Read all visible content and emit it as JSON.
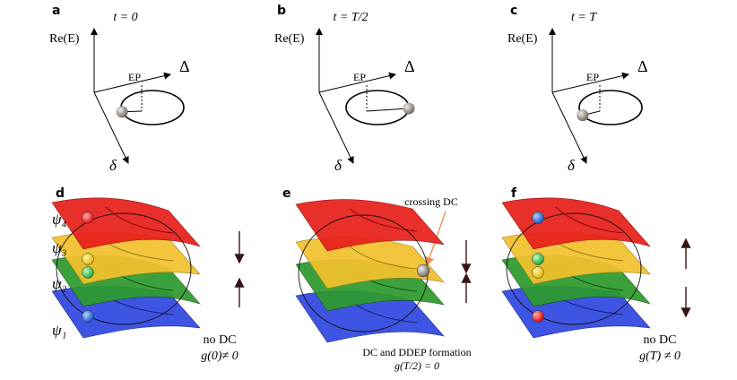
{
  "panels": [
    {
      "label": "a",
      "time": "t = 0",
      "y_axis": "Re(E)",
      "ep": "EP",
      "x_axis": "Δ",
      "z_axis": "δ"
    },
    {
      "label": "b",
      "time": "t = T/2",
      "y_axis": "Re(E)",
      "ep": "EP",
      "x_axis": "Δ",
      "z_axis": "δ"
    },
    {
      "label": "c",
      "time": "t = T",
      "y_axis": "Re(E)",
      "ep": "EP",
      "x_axis": "Δ",
      "z_axis": "δ"
    }
  ],
  "bottom": [
    {
      "label": "d",
      "states": [
        "ψ₄",
        "ψ₃",
        "ψ₂",
        "ψ₁"
      ],
      "note": "no DC",
      "condition": "g(0)≠ 0"
    },
    {
      "label": "e",
      "callout": "crossing DC",
      "note": "DC and DDEP formation",
      "condition": "g(T/2) = 0"
    },
    {
      "label": "f",
      "note": "no DC",
      "condition": "g(T) ≠ 0"
    }
  ]
}
